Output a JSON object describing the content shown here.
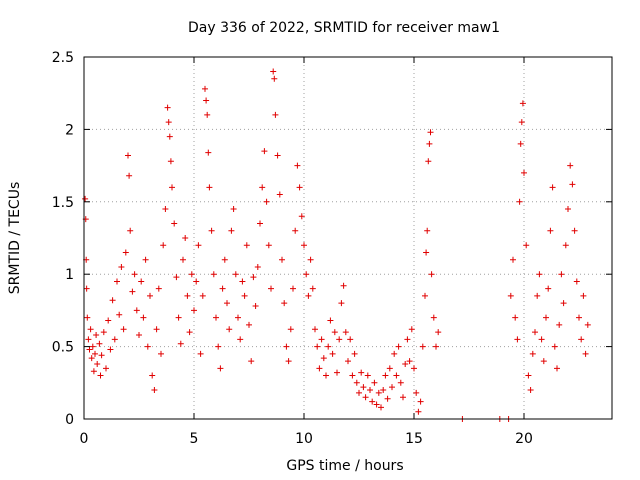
{
  "chart_data": {
    "type": "scatter",
    "title": "Day 336 of 2022, SRMTID for receiver maw1",
    "xlabel": "GPS time / hours",
    "ylabel": "SRMTID / TECUs",
    "xlim": [
      0,
      24
    ],
    "ylim": [
      0,
      2.5
    ],
    "xticks": [
      0,
      5,
      10,
      15,
      20
    ],
    "yticks": [
      0,
      0.5,
      1,
      1.5,
      2,
      2.5
    ],
    "xtick_labels": [
      "0",
      "5",
      "10",
      "15",
      "20"
    ],
    "ytick_labels": [
      "0",
      "0.5",
      "1",
      "1.5",
      "2",
      "2.5"
    ],
    "grid": true,
    "marker": "+",
    "color": "#e00000",
    "series": [
      {
        "name": "SRMTID",
        "points": [
          [
            0.05,
            1.52
          ],
          [
            0.08,
            1.38
          ],
          [
            0.1,
            1.1
          ],
          [
            0.12,
            0.9
          ],
          [
            0.15,
            0.7
          ],
          [
            0.2,
            0.55
          ],
          [
            0.25,
            0.48
          ],
          [
            0.3,
            0.62
          ],
          [
            0.35,
            0.42
          ],
          [
            0.4,
            0.5
          ],
          [
            0.45,
            0.33
          ],
          [
            0.5,
            0.45
          ],
          [
            0.55,
            0.58
          ],
          [
            0.6,
            0.38
          ],
          [
            0.7,
            0.52
          ],
          [
            0.75,
            0.3
          ],
          [
            0.8,
            0.44
          ],
          [
            0.9,
            0.6
          ],
          [
            1.0,
            0.35
          ],
          [
            1.1,
            0.68
          ],
          [
            1.2,
            0.48
          ],
          [
            1.3,
            0.82
          ],
          [
            1.4,
            0.55
          ],
          [
            1.5,
            0.95
          ],
          [
            1.6,
            0.72
          ],
          [
            1.7,
            1.05
          ],
          [
            1.8,
            0.62
          ],
          [
            1.9,
            1.15
          ],
          [
            2.0,
            1.82
          ],
          [
            2.05,
            1.68
          ],
          [
            2.1,
            1.3
          ],
          [
            2.2,
            0.88
          ],
          [
            2.3,
            1.0
          ],
          [
            2.4,
            0.75
          ],
          [
            2.5,
            0.58
          ],
          [
            2.6,
            0.95
          ],
          [
            2.7,
            0.7
          ],
          [
            2.8,
            1.1
          ],
          [
            2.9,
            0.5
          ],
          [
            3.0,
            0.85
          ],
          [
            3.1,
            0.3
          ],
          [
            3.2,
            0.2
          ],
          [
            3.3,
            0.62
          ],
          [
            3.4,
            0.9
          ],
          [
            3.5,
            0.45
          ],
          [
            3.6,
            1.2
          ],
          [
            3.7,
            1.45
          ],
          [
            3.8,
            2.15
          ],
          [
            3.85,
            2.05
          ],
          [
            3.9,
            1.95
          ],
          [
            3.95,
            1.78
          ],
          [
            4.0,
            1.6
          ],
          [
            4.1,
            1.35
          ],
          [
            4.2,
            0.98
          ],
          [
            4.3,
            0.7
          ],
          [
            4.4,
            0.52
          ],
          [
            4.5,
            1.1
          ],
          [
            4.6,
            1.25
          ],
          [
            4.7,
            0.85
          ],
          [
            4.8,
            0.6
          ],
          [
            4.9,
            1.0
          ],
          [
            5.0,
            0.75
          ],
          [
            5.1,
            0.95
          ],
          [
            5.2,
            1.2
          ],
          [
            5.3,
            0.45
          ],
          [
            5.4,
            0.85
          ],
          [
            5.5,
            2.28
          ],
          [
            5.55,
            2.2
          ],
          [
            5.6,
            2.1
          ],
          [
            5.65,
            1.84
          ],
          [
            5.7,
            1.6
          ],
          [
            5.8,
            1.3
          ],
          [
            5.9,
            1.0
          ],
          [
            6.0,
            0.7
          ],
          [
            6.1,
            0.5
          ],
          [
            6.2,
            0.35
          ],
          [
            6.3,
            0.9
          ],
          [
            6.4,
            1.1
          ],
          [
            6.5,
            0.8
          ],
          [
            6.6,
            0.62
          ],
          [
            6.7,
            1.3
          ],
          [
            6.8,
            1.45
          ],
          [
            6.9,
            1.0
          ],
          [
            7.0,
            0.7
          ],
          [
            7.1,
            0.55
          ],
          [
            7.2,
            0.95
          ],
          [
            7.3,
            0.85
          ],
          [
            7.4,
            1.2
          ],
          [
            7.5,
            0.65
          ],
          [
            7.6,
            0.4
          ],
          [
            7.7,
            0.98
          ],
          [
            7.8,
            0.78
          ],
          [
            7.9,
            1.05
          ],
          [
            8.0,
            1.35
          ],
          [
            8.1,
            1.6
          ],
          [
            8.2,
            1.85
          ],
          [
            8.3,
            1.5
          ],
          [
            8.4,
            1.2
          ],
          [
            8.5,
            0.9
          ],
          [
            8.6,
            2.4
          ],
          [
            8.65,
            2.35
          ],
          [
            8.7,
            2.1
          ],
          [
            8.8,
            1.82
          ],
          [
            8.9,
            1.55
          ],
          [
            9.0,
            1.1
          ],
          [
            9.1,
            0.8
          ],
          [
            9.2,
            0.5
          ],
          [
            9.3,
            0.4
          ],
          [
            9.4,
            0.62
          ],
          [
            9.5,
            0.9
          ],
          [
            9.6,
            1.3
          ],
          [
            9.7,
            1.75
          ],
          [
            9.8,
            1.6
          ],
          [
            9.9,
            1.4
          ],
          [
            10.0,
            1.2
          ],
          [
            10.1,
            1.0
          ],
          [
            10.2,
            0.85
          ],
          [
            10.3,
            1.1
          ],
          [
            10.4,
            0.9
          ],
          [
            10.5,
            0.62
          ],
          [
            10.6,
            0.5
          ],
          [
            10.7,
            0.35
          ],
          [
            10.8,
            0.55
          ],
          [
            10.9,
            0.42
          ],
          [
            11.0,
            0.3
          ],
          [
            11.1,
            0.5
          ],
          [
            11.2,
            0.68
          ],
          [
            11.3,
            0.45
          ],
          [
            11.4,
            0.6
          ],
          [
            11.5,
            0.32
          ],
          [
            11.6,
            0.55
          ],
          [
            11.7,
            0.8
          ],
          [
            11.8,
            0.92
          ],
          [
            11.9,
            0.6
          ],
          [
            12.0,
            0.4
          ],
          [
            12.1,
            0.55
          ],
          [
            12.2,
            0.3
          ],
          [
            12.3,
            0.45
          ],
          [
            12.4,
            0.25
          ],
          [
            12.5,
            0.18
          ],
          [
            12.6,
            0.32
          ],
          [
            12.7,
            0.22
          ],
          [
            12.8,
            0.15
          ],
          [
            12.9,
            0.3
          ],
          [
            13.0,
            0.2
          ],
          [
            13.1,
            0.12
          ],
          [
            13.2,
            0.25
          ],
          [
            13.3,
            0.1
          ],
          [
            13.4,
            0.18
          ],
          [
            13.5,
            0.08
          ],
          [
            13.6,
            0.2
          ],
          [
            13.7,
            0.3
          ],
          [
            13.8,
            0.14
          ],
          [
            13.9,
            0.35
          ],
          [
            14.0,
            0.22
          ],
          [
            14.1,
            0.45
          ],
          [
            14.2,
            0.3
          ],
          [
            14.3,
            0.5
          ],
          [
            14.4,
            0.25
          ],
          [
            14.5,
            0.15
          ],
          [
            14.6,
            0.38
          ],
          [
            14.7,
            0.55
          ],
          [
            14.8,
            0.4
          ],
          [
            14.9,
            0.62
          ],
          [
            15.0,
            0.35
          ],
          [
            15.1,
            0.18
          ],
          [
            15.2,
            0.05
          ],
          [
            15.3,
            0.12
          ],
          [
            15.4,
            0.5
          ],
          [
            15.5,
            0.85
          ],
          [
            15.55,
            1.15
          ],
          [
            15.6,
            1.3
          ],
          [
            15.65,
            1.78
          ],
          [
            15.7,
            1.9
          ],
          [
            15.75,
            1.98
          ],
          [
            15.8,
            1.0
          ],
          [
            15.9,
            0.7
          ],
          [
            16.0,
            0.5
          ],
          [
            16.1,
            0.6
          ],
          [
            17.2,
            0.0
          ],
          [
            18.9,
            0.0
          ],
          [
            19.3,
            0.0
          ],
          [
            19.4,
            0.85
          ],
          [
            19.5,
            1.1
          ],
          [
            19.6,
            0.7
          ],
          [
            19.7,
            0.55
          ],
          [
            19.8,
            1.5
          ],
          [
            19.85,
            1.9
          ],
          [
            19.9,
            2.05
          ],
          [
            19.95,
            2.18
          ],
          [
            20.0,
            1.7
          ],
          [
            20.1,
            1.2
          ],
          [
            20.2,
            0.3
          ],
          [
            20.3,
            0.2
          ],
          [
            20.4,
            0.45
          ],
          [
            20.5,
            0.6
          ],
          [
            20.6,
            0.85
          ],
          [
            20.7,
            1.0
          ],
          [
            20.8,
            0.55
          ],
          [
            20.9,
            0.4
          ],
          [
            21.0,
            0.7
          ],
          [
            21.1,
            0.9
          ],
          [
            21.2,
            1.3
          ],
          [
            21.3,
            1.6
          ],
          [
            21.4,
            0.5
          ],
          [
            21.5,
            0.35
          ],
          [
            21.6,
            0.65
          ],
          [
            21.7,
            1.0
          ],
          [
            21.8,
            0.8
          ],
          [
            21.9,
            1.2
          ],
          [
            22.0,
            1.45
          ],
          [
            22.1,
            1.75
          ],
          [
            22.2,
            1.62
          ],
          [
            22.3,
            1.3
          ],
          [
            22.4,
            0.95
          ],
          [
            22.5,
            0.7
          ],
          [
            22.6,
            0.55
          ],
          [
            22.7,
            0.85
          ],
          [
            22.8,
            0.45
          ],
          [
            22.9,
            0.65
          ]
        ]
      }
    ]
  }
}
